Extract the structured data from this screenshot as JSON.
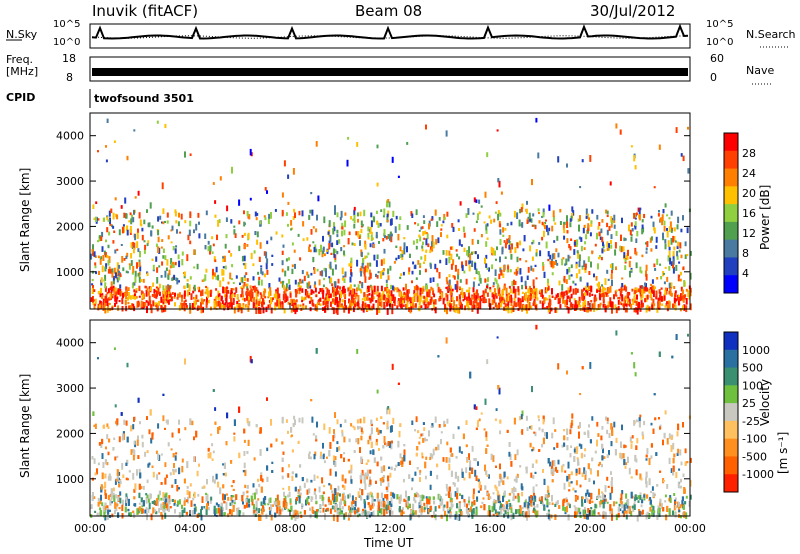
{
  "header": {
    "station": "Inuvik (fitACF)",
    "beam": "Beam 08",
    "date": "30/Jul/2012"
  },
  "top_panels": {
    "nsky_label": "N.Sky",
    "nsky_ticks": [
      "10^5",
      "10^0"
    ],
    "nsearch_label": "N.Search",
    "nsearch_ticks": [
      "10^5",
      "10^0"
    ],
    "freq_label": "Freq.",
    "freq_unit": "[MHz]",
    "freq_ticks": [
      "18",
      "8"
    ],
    "nave_label": "Nave",
    "nave_ticks": [
      "60",
      "0"
    ],
    "cpid_label": "CPID",
    "cpid_value": "twofsound 3501"
  },
  "chart_data": [
    {
      "type": "heatmap",
      "name": "power",
      "ylabel": "Slant Range [km]",
      "yticks": [
        "4000",
        "3000",
        "2000",
        "1000"
      ],
      "ylim": [
        180,
        4500
      ],
      "xlim_hours": [
        0,
        24
      ],
      "colorbar_label": "Power [dB]",
      "colorbar_ticks": [
        "28",
        "24",
        "20",
        "16",
        "12",
        "8",
        "4"
      ],
      "colorbar_colors": [
        "#ff0000",
        "#ff4000",
        "#ff8000",
        "#ffc000",
        "#90d040",
        "#50a050",
        "#4a7aa0",
        "#2040c0",
        "#0000ff"
      ]
    },
    {
      "type": "heatmap",
      "name": "velocity",
      "ylabel": "Slant Range [km]",
      "yticks": [
        "4000",
        "3000",
        "2000",
        "1000"
      ],
      "ylim": [
        180,
        4500
      ],
      "xlim_hours": [
        0,
        24
      ],
      "xlabel": "Time UT",
      "xticks": [
        "00:00",
        "04:00",
        "08:00",
        "12:00",
        "16:00",
        "20:00",
        "00:00"
      ],
      "colorbar_label": "Velocity",
      "colorbar_unit": "[m s⁻¹]",
      "colorbar_ticks": [
        "1000",
        "500",
        "100",
        "25",
        "-25",
        "-100",
        "-500",
        "-1000"
      ],
      "colorbar_colors": [
        "#1030c0",
        "#2a70a0",
        "#3a9070",
        "#70c040",
        "#c8c8c0",
        "#ffc060",
        "#ff9020",
        "#ff6000",
        "#ff2000"
      ]
    }
  ]
}
